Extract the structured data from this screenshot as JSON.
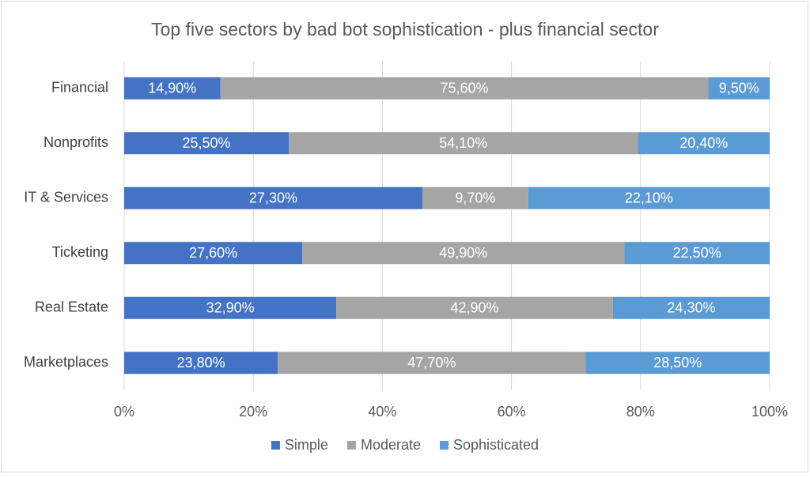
{
  "chart_data": {
    "type": "bar",
    "orientation": "horizontal",
    "stacking": "percent",
    "title": "Top five sectors by bad bot sophistication - plus financial sector",
    "categories": [
      "Financial",
      "Nonprofits",
      "IT & Services",
      "Ticketing",
      "Real Estate",
      "Marketplaces"
    ],
    "series": [
      {
        "name": "Simple",
        "color": "#4472c4",
        "values": [
          14.9,
          25.5,
          27.3,
          27.6,
          32.9,
          23.8
        ],
        "value_labels": [
          "14,90%",
          "25,50%",
          "27,30%",
          "27,60%",
          "32,90%",
          "23,80%"
        ]
      },
      {
        "name": "Moderate",
        "color": "#a5a5a5",
        "values": [
          75.6,
          54.1,
          9.7,
          49.9,
          42.9,
          47.7
        ],
        "value_labels": [
          "75,60%",
          "54,10%",
          "9,70%",
          "49,90%",
          "42,90%",
          "47,70%"
        ]
      },
      {
        "name": "Sophisticated",
        "color": "#5b9bd5",
        "values": [
          9.5,
          20.4,
          22.1,
          22.5,
          24.3,
          28.5
        ],
        "value_labels": [
          "9,50%",
          "20,40%",
          "22,10%",
          "22,50%",
          "24,30%",
          "28,50%"
        ]
      }
    ],
    "xlim": [
      0,
      100
    ],
    "xticks": [
      {
        "value": 0,
        "label": "0%"
      },
      {
        "value": 20,
        "label": "20%"
      },
      {
        "value": 40,
        "label": "40%"
      },
      {
        "value": 60,
        "label": "60%"
      },
      {
        "value": 80,
        "label": "80%"
      },
      {
        "value": 100,
        "label": "100%"
      }
    ],
    "grid": true,
    "legend": "bottom"
  }
}
